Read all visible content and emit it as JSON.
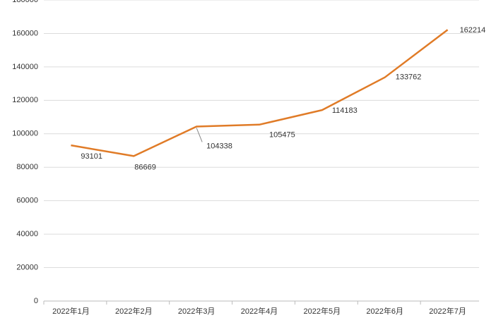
{
  "chart_data": {
    "type": "line",
    "categories": [
      "2022年1月",
      "2022年2月",
      "2022年3月",
      "2022年4月",
      "2022年5月",
      "2022年6月",
      "2022年7月"
    ],
    "series": [
      {
        "color": "#e07b27",
        "values": [
          93101,
          86669,
          104338,
          105475,
          114183,
          133762,
          162214
        ]
      }
    ],
    "ylim": [
      0,
      180000
    ],
    "yticks": [
      0,
      20000,
      40000,
      60000,
      80000,
      100000,
      120000,
      140000,
      160000,
      180000
    ],
    "grid": true
  }
}
